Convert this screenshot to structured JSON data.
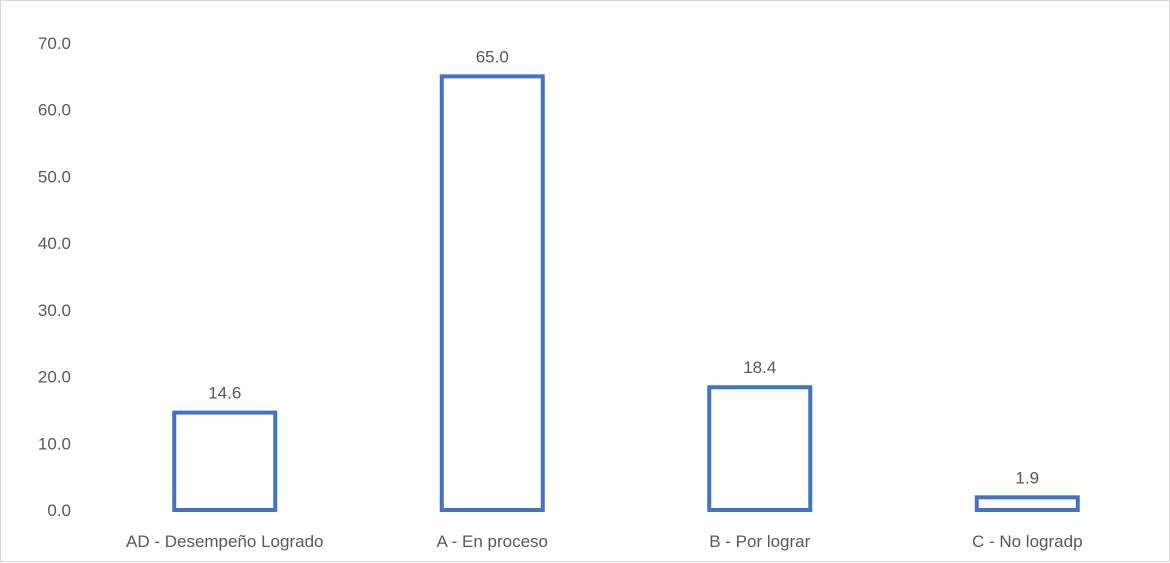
{
  "chart_data": {
    "type": "bar",
    "categories": [
      "AD - Desempeño Logrado",
      "A - En proceso",
      "B - Por lograr",
      "C - No logradp"
    ],
    "values": [
      14.6,
      65.0,
      18.4,
      1.9
    ],
    "data_labels": [
      "14.6",
      "65.0",
      "18.4",
      "1.9"
    ],
    "y_ticks": [
      0,
      10,
      20,
      30,
      40,
      50,
      60,
      70
    ],
    "y_tick_labels": [
      "0.0",
      "10.0",
      "20.0",
      "30.0",
      "40.0",
      "50.0",
      "60.0",
      "70.0"
    ],
    "ylim": [
      0,
      70
    ],
    "grid": false,
    "legend": "none",
    "title": "",
    "xlabel": "",
    "ylabel": "",
    "bar_style": "outline",
    "bar_color": "#4472c4"
  }
}
